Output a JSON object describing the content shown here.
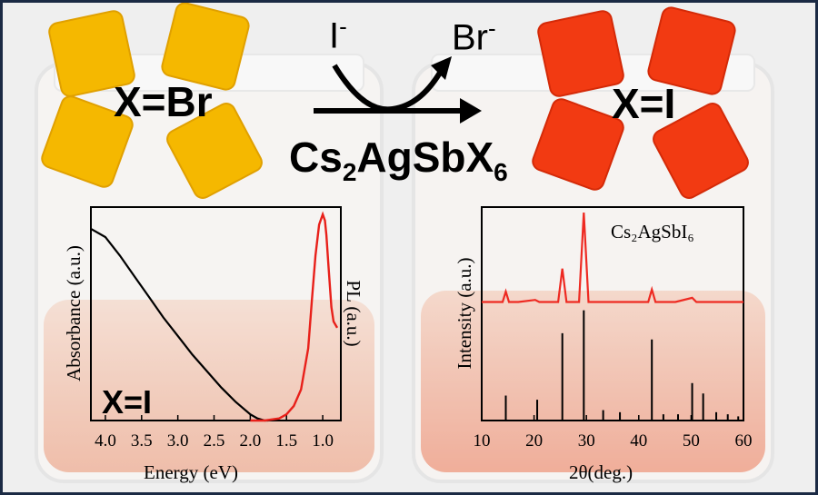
{
  "reaction": {
    "left_label": "X=Br",
    "right_label": "X=I",
    "incoming_ion": "I",
    "incoming_charge": "-",
    "outgoing_ion": "Br",
    "outgoing_charge": "-",
    "formula_prefix": "Cs",
    "formula_sub1": "2",
    "formula_mid": "AgSbX",
    "formula_sub2": "6"
  },
  "colors": {
    "br_crystal": "#f5b800",
    "br_crystal_edge": "#e0a000",
    "i_crystal": "#f23a12",
    "i_crystal_edge": "#d42a08",
    "pl_curve": "#e8201a",
    "xrd_measured": "#ee2a22",
    "frame": "#1b2a44",
    "vial_liquid": "#e8a58c"
  },
  "chart_data": [
    {
      "type": "line",
      "xlabel": "Energy (eV)",
      "ylabel": "Absorbance (a.u.)",
      "y2label": "PL (a.u.)",
      "xlim": [
        4.2,
        0.75
      ],
      "x_reversed": true,
      "xticks": [
        "4.0",
        "3.5",
        "3.0",
        "2.5",
        "2.0",
        "1.5",
        "1.0"
      ],
      "xtick_values": [
        4.0,
        3.5,
        3.0,
        2.5,
        2.0,
        1.5,
        1.0
      ],
      "annotation": "X=I",
      "series": [
        {
          "role": "absorbance",
          "x": [
            4.2,
            4.0,
            3.8,
            3.6,
            3.4,
            3.2,
            3.0,
            2.8,
            2.6,
            2.4,
            2.2,
            2.0,
            1.9,
            1.8,
            1.75
          ],
          "y": [
            0.93,
            0.89,
            0.8,
            0.7,
            0.6,
            0.5,
            0.41,
            0.32,
            0.24,
            0.16,
            0.09,
            0.03,
            0.01,
            0.0,
            0.0
          ]
        },
        {
          "role": "pl",
          "x": [
            2.0,
            1.8,
            1.6,
            1.5,
            1.4,
            1.3,
            1.2,
            1.15,
            1.1,
            1.05,
            1.0,
            0.97,
            0.95,
            0.92,
            0.88,
            0.85,
            0.8
          ],
          "y": [
            0.0,
            0.0,
            0.01,
            0.03,
            0.07,
            0.15,
            0.35,
            0.58,
            0.8,
            0.95,
            1.0,
            0.97,
            0.9,
            0.75,
            0.55,
            0.48,
            0.45
          ]
        }
      ]
    },
    {
      "type": "line",
      "title": "Cs₂AgSbI₆",
      "xlabel": "2θ(deg.)",
      "ylabel": "Intensity (a.u.)",
      "xlim": [
        10,
        60
      ],
      "xticks": [
        "10",
        "20",
        "30",
        "40",
        "50",
        "60"
      ],
      "xtick_values": [
        10,
        20,
        30,
        40,
        50,
        60
      ],
      "series": [
        {
          "role": "measured",
          "x": [
            10,
            14,
            14.6,
            15.2,
            17,
            20.2,
            21,
            24.6,
            25.4,
            26.2,
            28.6,
            29.5,
            30.4,
            33,
            38,
            41.8,
            42.5,
            43.2,
            47,
            50.2,
            51,
            55,
            60
          ],
          "y": [
            0.57,
            0.57,
            0.62,
            0.57,
            0.57,
            0.58,
            0.57,
            0.57,
            0.73,
            0.57,
            0.57,
            1.0,
            0.57,
            0.57,
            0.57,
            0.57,
            0.63,
            0.57,
            0.57,
            0.59,
            0.57,
            0.57,
            0.57
          ]
        },
        {
          "role": "reference",
          "type": "stem",
          "x": [
            14.6,
            20.6,
            25.4,
            29.5,
            33.2,
            36.4,
            42.5,
            44.7,
            47.5,
            50.2,
            52.3,
            54.8,
            57.0,
            59.0
          ],
          "y": [
            0.12,
            0.1,
            0.42,
            0.53,
            0.05,
            0.04,
            0.39,
            0.03,
            0.03,
            0.18,
            0.13,
            0.04,
            0.03,
            0.02
          ]
        }
      ]
    }
  ]
}
